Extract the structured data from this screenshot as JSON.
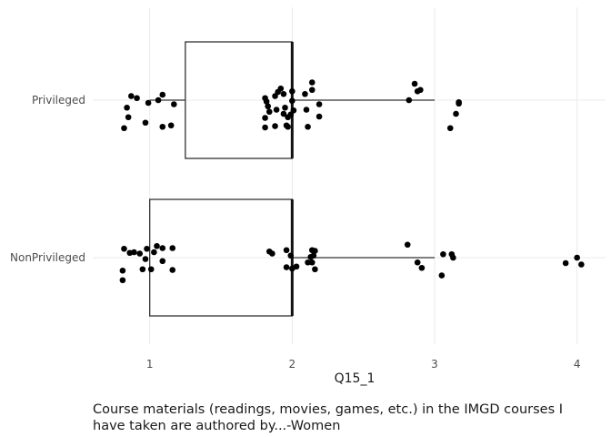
{
  "chart_data": {
    "type": "boxplot",
    "orientation": "horizontal",
    "title": "",
    "xlabel": "Q15_1",
    "ylabel": "",
    "caption": "Course materials (readings, movies, games, etc.) in the IMGD courses I have taken are authored by...-Women",
    "xlim": [
      0.6,
      4.2
    ],
    "x_ticks": [
      1,
      2,
      3,
      4
    ],
    "grid": true,
    "legend": "none",
    "categories": [
      "NonPrivileged",
      "Privileged"
    ],
    "boxes": [
      {
        "category": "Privileged",
        "min": 1,
        "q1": 1.25,
        "median": 2,
        "q3": 2,
        "max": 3
      },
      {
        "category": "NonPrivileged",
        "min": 1,
        "q1": 1,
        "median": 2,
        "q3": 2,
        "max": 3
      }
    ],
    "points": [
      {
        "category": "Privileged",
        "values": [
          [
            0.82,
            0.41
          ],
          [
            0.84,
            0.11
          ],
          [
            0.87,
            -0.06
          ],
          [
            0.91,
            -0.03
          ],
          [
            0.97,
            0.33
          ],
          [
            0.99,
            0.04
          ],
          [
            1.06,
            0.0
          ],
          [
            1.09,
            -0.08
          ],
          [
            1.09,
            0.39
          ],
          [
            1.15,
            0.37
          ],
          [
            1.17,
            0.06
          ],
          [
            0.85,
            0.25
          ],
          [
            1.81,
            0.4
          ],
          [
            1.81,
            0.26
          ],
          [
            1.81,
            -0.03
          ],
          [
            1.82,
            0.02
          ],
          [
            1.83,
            0.09
          ],
          [
            1.84,
            0.17
          ],
          [
            1.88,
            0.38
          ],
          [
            1.88,
            -0.06
          ],
          [
            1.89,
            0.14
          ],
          [
            1.9,
            -0.12
          ],
          [
            1.92,
            -0.17
          ],
          [
            1.94,
            0.2
          ],
          [
            1.94,
            -0.09
          ],
          [
            1.95,
            0.11
          ],
          [
            1.96,
            0.37
          ],
          [
            1.97,
            0.25
          ],
          [
            1.97,
            0.39
          ],
          [
            1.99,
            0.21
          ],
          [
            2.0,
            0.01
          ],
          [
            2.01,
            0.15
          ],
          [
            2.0,
            -0.13
          ],
          [
            2.09,
            -0.09
          ],
          [
            2.1,
            0.14
          ],
          [
            2.11,
            0.39
          ],
          [
            2.14,
            -0.15
          ],
          [
            2.14,
            -0.26
          ],
          [
            2.19,
            0.24
          ],
          [
            2.19,
            0.06
          ],
          [
            2.82,
            0.0
          ],
          [
            2.86,
            -0.24
          ],
          [
            2.88,
            -0.13
          ],
          [
            2.9,
            -0.15
          ],
          [
            3.11,
            0.41
          ],
          [
            3.15,
            0.2
          ],
          [
            3.17,
            0.05
          ],
          [
            3.17,
            0.03
          ]
        ]
      },
      {
        "category": "NonPrivileged",
        "values": [
          [
            0.81,
            0.33
          ],
          [
            0.81,
            0.19
          ],
          [
            0.82,
            -0.13
          ],
          [
            0.86,
            -0.07
          ],
          [
            0.89,
            -0.08
          ],
          [
            0.93,
            -0.06
          ],
          [
            0.95,
            0.17
          ],
          [
            0.97,
            0.02
          ],
          [
            0.98,
            -0.13
          ],
          [
            1.01,
            0.17
          ],
          [
            1.03,
            -0.08
          ],
          [
            1.05,
            -0.17
          ],
          [
            1.09,
            -0.14
          ],
          [
            1.09,
            0.05
          ],
          [
            1.16,
            -0.14
          ],
          [
            1.16,
            0.18
          ],
          [
            1.84,
            -0.09
          ],
          [
            1.86,
            -0.06
          ],
          [
            1.96,
            0.14
          ],
          [
            1.96,
            -0.11
          ],
          [
            1.99,
            -0.03
          ],
          [
            2.0,
            0.16
          ],
          [
            2.03,
            0.13
          ],
          [
            2.11,
            0.07
          ],
          [
            2.13,
            -0.01
          ],
          [
            2.14,
            0.07
          ],
          [
            2.14,
            -0.11
          ],
          [
            2.15,
            -0.03
          ],
          [
            2.16,
            -0.1
          ],
          [
            2.16,
            0.17
          ],
          [
            2.81,
            -0.19
          ],
          [
            2.88,
            0.07
          ],
          [
            2.91,
            0.15
          ],
          [
            3.05,
            0.26
          ],
          [
            3.06,
            -0.05
          ],
          [
            3.12,
            -0.05
          ],
          [
            3.13,
            0.0
          ],
          [
            3.92,
            0.08
          ],
          [
            4.0,
            0.0
          ],
          [
            4.03,
            0.1
          ]
        ]
      }
    ]
  }
}
